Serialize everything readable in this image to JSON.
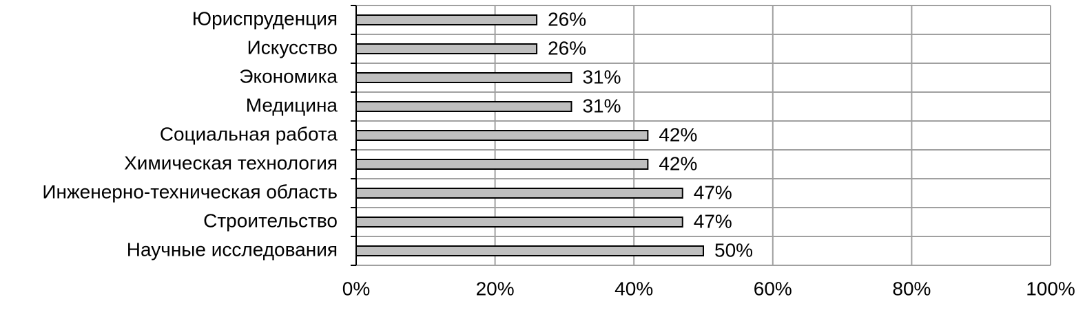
{
  "chart_data": {
    "type": "bar",
    "orientation": "horizontal",
    "categories": [
      "Юриспруденция",
      "Искусство",
      "Экономика",
      "Медицина",
      "Социальная работа",
      "Химическая технология",
      "Инженерно-техническая область",
      "Строительство",
      "Научные исследования"
    ],
    "values": [
      26,
      26,
      31,
      31,
      42,
      42,
      47,
      47,
      50
    ],
    "value_labels": [
      "26%",
      "26%",
      "31%",
      "31%",
      "42%",
      "42%",
      "47%",
      "47%",
      "50%"
    ],
    "color": "#bfbfbf",
    "xlim": [
      0,
      100
    ],
    "xticks": [
      {
        "value": 0,
        "label": "0%"
      },
      {
        "value": 20,
        "label": "20%"
      },
      {
        "value": 40,
        "label": "40%"
      },
      {
        "value": 60,
        "label": "60%"
      },
      {
        "value": 80,
        "label": "80%"
      },
      {
        "value": 100,
        "label": "100%"
      }
    ],
    "grid": true
  }
}
